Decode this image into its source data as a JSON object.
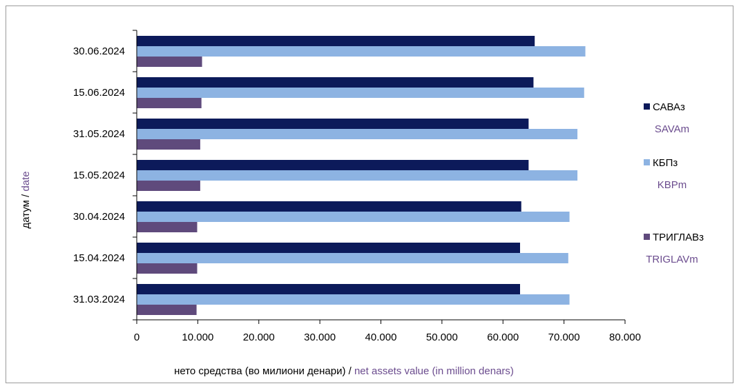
{
  "chart_data": {
    "type": "bar",
    "orientation": "horizontal",
    "categories": [
      "30.06.2024",
      "15.06.2024",
      "31.05.2024",
      "15.05.2024",
      "30.04.2024",
      "15.04.2024",
      "31.03.2024"
    ],
    "series": [
      {
        "name": "САВАз",
        "name_en": "SAVAm",
        "color": "#0c1a5a",
        "values": [
          65200,
          65000,
          64200,
          64200,
          63000,
          62800,
          62800
        ]
      },
      {
        "name": "КБПз",
        "name_en": "KBPm",
        "color": "#8db3e2",
        "values": [
          73500,
          73300,
          72200,
          72200,
          70900,
          70700,
          70900
        ]
      },
      {
        "name": "ТРИГЛАВз",
        "name_en": "TRIGLAVm",
        "color": "#5f4a7c",
        "values": [
          10700,
          10600,
          10400,
          10400,
          9900,
          9900,
          9800
        ]
      }
    ],
    "xlim": [
      0,
      80000
    ],
    "xticks": [
      "0",
      "10.000",
      "20.000",
      "30.000",
      "40.000",
      "50.000",
      "60.000",
      "70.000",
      "80.000"
    ],
    "xlabel": "нето средства (во милиони денари)",
    "xlabel_sep": " / ",
    "xlabel_en": "net assets value (in million denars)",
    "ylabel": "датум",
    "ylabel_sep": " / ",
    "ylabel_en": "date",
    "legend_position": "right",
    "grid": false
  }
}
